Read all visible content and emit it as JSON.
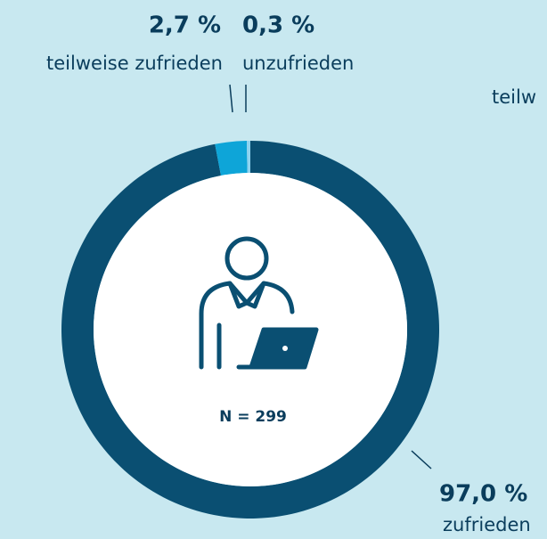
{
  "chart_data": {
    "type": "donut",
    "categories": [
      "zufrieden",
      "teilweise zufrieden",
      "unzufrieden"
    ],
    "values": [
      97.0,
      2.7,
      0.3
    ],
    "value_labels": [
      "97,0 %",
      "2,7 %",
      "0,3 %"
    ],
    "colors": [
      "#0a4f72",
      "#0ea5d8",
      "#8fd3ef"
    ],
    "center_label": "N = 299",
    "annotation": "teilw"
  }
}
